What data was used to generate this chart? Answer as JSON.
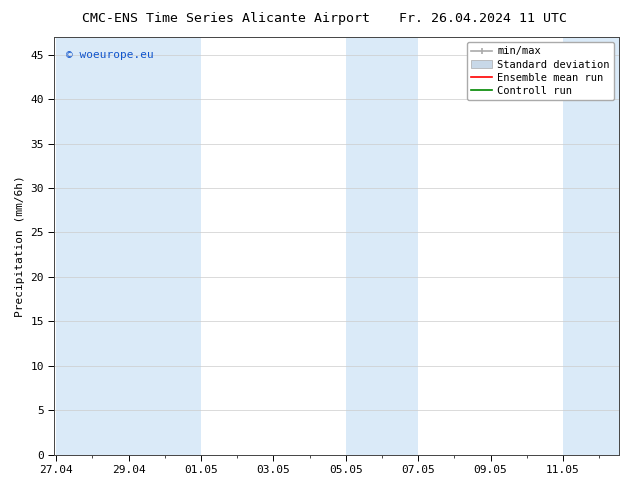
{
  "title_left": "CMC-ENS Time Series Alicante Airport",
  "title_right": "Fr. 26.04.2024 11 UTC",
  "ylabel": "Precipitation (mm/6h)",
  "watermark": "© woeurope.eu",
  "watermark_color": "#1155cc",
  "ylim": [
    0,
    47
  ],
  "yticks": [
    0,
    5,
    10,
    15,
    20,
    25,
    30,
    35,
    40,
    45
  ],
  "xtick_labels": [
    "27.04",
    "29.04",
    "01.05",
    "03.05",
    "05.05",
    "07.05",
    "09.05",
    "11.05"
  ],
  "xtick_positions": [
    0,
    2,
    4,
    6,
    8,
    10,
    12,
    14
  ],
  "xlim": [
    -0.05,
    15.55
  ],
  "background_color": "#ffffff",
  "plot_bg_color": "#ffffff",
  "band_color": "#daeaf8",
  "shaded_regions": [
    [
      0.0,
      2.0
    ],
    [
      2.0,
      4.0
    ],
    [
      8.0,
      10.0
    ],
    [
      14.0,
      15.55
    ]
  ],
  "legend_entries": [
    "min/max",
    "Standard deviation",
    "Ensemble mean run",
    "Controll run"
  ],
  "minmax_color": "#aaaaaa",
  "std_facecolor": "#c8d8e8",
  "ensemble_color": "#ff0000",
  "control_color": "#008800",
  "title_fontsize": 9.5,
  "tick_fontsize": 8,
  "legend_fontsize": 7.5,
  "ylabel_fontsize": 8,
  "watermark_fontsize": 8
}
